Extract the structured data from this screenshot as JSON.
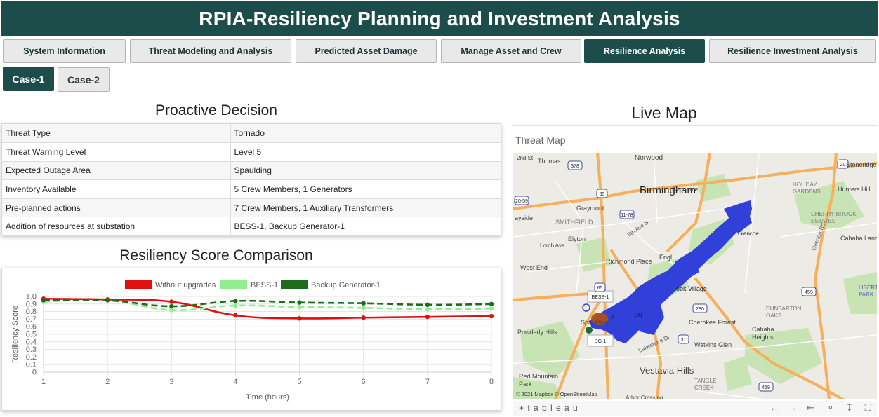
{
  "header": {
    "title": "RPIA-Resiliency Planning and Investment Analysis"
  },
  "tabs": [
    {
      "label": "System Information",
      "active": false
    },
    {
      "label": "Threat Modeling and Analysis",
      "active": false
    },
    {
      "label": "Predicted Asset Damage",
      "active": false
    },
    {
      "label": "Manage Asset and Crew",
      "active": false
    },
    {
      "label": "Resilience Analysis",
      "active": true
    },
    {
      "label": "Resilience Investment Analysis",
      "active": false
    }
  ],
  "cases": [
    {
      "label": "Case-1",
      "active": true
    },
    {
      "label": "Case-2",
      "active": false
    }
  ],
  "proactive": {
    "title": "Proactive Decision",
    "rows": [
      {
        "key": "Threat Type",
        "value": "Tornado"
      },
      {
        "key": "Threat Warning Level",
        "value": "Level 5"
      },
      {
        "key": "Expected Outage Area",
        "value": "Spaulding"
      },
      {
        "key": "Inventory Available",
        "value": "5 Crew Members, 1 Generators"
      },
      {
        "key": "Pre-planned actions",
        "value": "7 Crew Members, 1 Auxiliary Transformers"
      },
      {
        "key": "Addition of resources at substation",
        "value": "BESS-1, Backup Generator-1"
      }
    ]
  },
  "resiliency": {
    "title": "Resiliency Score Comparison"
  },
  "chart_data": {
    "type": "line",
    "title": "",
    "xlabel": "Time (hours)",
    "ylabel": "Resiliency Score",
    "x": [
      1,
      2,
      3,
      4,
      5,
      6,
      7,
      8
    ],
    "xlim": [
      1,
      8
    ],
    "ylim": [
      0,
      1.0
    ],
    "yticks": [
      "0",
      "0.1",
      "0.2",
      "0.3",
      "0.4",
      "0.5",
      "0.6",
      "0.7",
      "0.8",
      "0.9",
      "1.0"
    ],
    "xticks": [
      "1",
      "2",
      "3",
      "4",
      "5",
      "6",
      "7",
      "8"
    ],
    "legend_position": "top",
    "grid": true,
    "series": [
      {
        "name": "Without upgrades",
        "values": [
          0.97,
          0.96,
          0.93,
          0.75,
          0.71,
          0.72,
          0.73,
          0.74
        ],
        "color": "#e01010",
        "dash": "solid"
      },
      {
        "name": "BESS-1",
        "values": [
          0.93,
          0.95,
          0.82,
          0.88,
          0.86,
          0.85,
          0.83,
          0.84
        ],
        "color": "#90ee90",
        "dash": "dashed"
      },
      {
        "name": "Backup Generator-1",
        "values": [
          0.95,
          0.95,
          0.87,
          0.94,
          0.92,
          0.91,
          0.89,
          0.9
        ],
        "color": "#1e6b1e",
        "dash": "dashed"
      }
    ]
  },
  "livemap": {
    "title": "Live Map",
    "label": "Threat Map",
    "places": [
      {
        "name": "Birmingham"
      },
      {
        "name": "Norwood"
      },
      {
        "name": "Avondale"
      },
      {
        "name": "Thomas"
      },
      {
        "name": "2nd St"
      },
      {
        "name": "Graymont"
      },
      {
        "name": "SMITHFIELD"
      },
      {
        "name": "ayside"
      },
      {
        "name": "Elyton"
      },
      {
        "name": "Lomb Ave"
      },
      {
        "name": "West End"
      },
      {
        "name": "Richmond Place"
      },
      {
        "name": "Spaulding"
      },
      {
        "name": "Powderly Hills"
      },
      {
        "name": "Red Mountain Park"
      },
      {
        "name": "Vestavia Hills"
      },
      {
        "name": "Cherokee Forest"
      },
      {
        "name": "Watkins Glen"
      },
      {
        "name": "Cahaba Heights"
      },
      {
        "name": "DUNBARTON OAKS"
      },
      {
        "name": "TANGLE CREEK"
      },
      {
        "name": "HOLIDAY GARDENS"
      },
      {
        "name": "Hunters Hill"
      },
      {
        "name": "CHERRY BROOK ESTATES"
      },
      {
        "name": "Cahaba Landing"
      },
      {
        "name": "LIBERTY PARK"
      },
      {
        "name": "Stoneridge"
      },
      {
        "name": "Glencoe"
      },
      {
        "name": "Arbor Crossing"
      },
      {
        "name": "Engl"
      },
      {
        "name": "ook Village"
      },
      {
        "name": "od"
      },
      {
        "name": "E"
      },
      {
        "name": "Lakeshore Dr"
      },
      {
        "name": "5th Ave S"
      },
      {
        "name": "Overton Rd"
      }
    ],
    "shields": [
      "378",
      "65",
      "11-78",
      "20-59",
      "65",
      "280",
      "31",
      "459",
      "20",
      "459",
      "65"
    ],
    "markers": {
      "bess": "BESS-1",
      "dg": "DG-1"
    },
    "attribution": "© 2021 Mapbox  © OpenStreetMap",
    "tableau": "+ t a b l e a u"
  },
  "colors": {
    "header": "#1d4d4a",
    "threat": "#3040d8",
    "park": "#c8e4b4"
  }
}
